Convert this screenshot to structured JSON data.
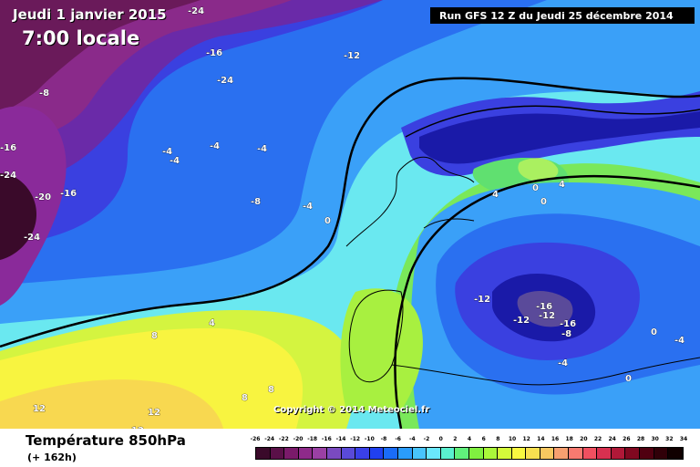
{
  "header": {
    "date": "Jeudi 1 janvier 2015",
    "time": "7:00 locale",
    "run": "Run GFS 12 Z du Jeudi 25 décembre 2014"
  },
  "map": {
    "copyright": "Copyright © 2014 Meteociel.fr",
    "isotherm_labels": [
      "-24",
      "-16",
      "-12",
      "-8",
      "-24",
      "-16",
      "-24",
      "-20",
      "-16",
      "-24",
      "-4",
      "-4",
      "-4",
      "-4",
      "-8",
      "-4",
      "0",
      "0",
      "4",
      "0",
      "4",
      "4",
      "8",
      "8",
      "8",
      "12",
      "12",
      "12",
      "-12",
      "-12",
      "-16",
      "-12",
      "-16",
      "-8",
      "-4",
      "0",
      "-4",
      "0"
    ]
  },
  "footer": {
    "title": "Température 850hPa",
    "lead": "(+ 162h)"
  },
  "legend": {
    "ticks": [
      "-26",
      "-24",
      "-22",
      "-20",
      "-18",
      "-16",
      "-14",
      "-12",
      "-10",
      "-8",
      "-6",
      "-4",
      "-2",
      "0",
      "2",
      "4",
      "6",
      "8",
      "10",
      "12",
      "14",
      "16",
      "18",
      "20",
      "22",
      "24",
      "26",
      "28",
      "30",
      "32",
      "34"
    ],
    "colors": [
      "#3a0a2a",
      "#5a1048",
      "#7a1a6a",
      "#8e2a8a",
      "#9a40a4",
      "#7a4ac0",
      "#5a4ad8",
      "#3a40e8",
      "#2040f0",
      "#1a6cf8",
      "#2a9cfc",
      "#48c4fc",
      "#6ae8fc",
      "#5af0d0",
      "#60f07c",
      "#80f040",
      "#aaf83a",
      "#d4fa3a",
      "#f8f840",
      "#f8e050",
      "#f8c860",
      "#f8a070",
      "#f87a70",
      "#f05060",
      "#d83050",
      "#b01838",
      "#800820",
      "#500010",
      "#300008",
      "#100000"
    ]
  }
}
